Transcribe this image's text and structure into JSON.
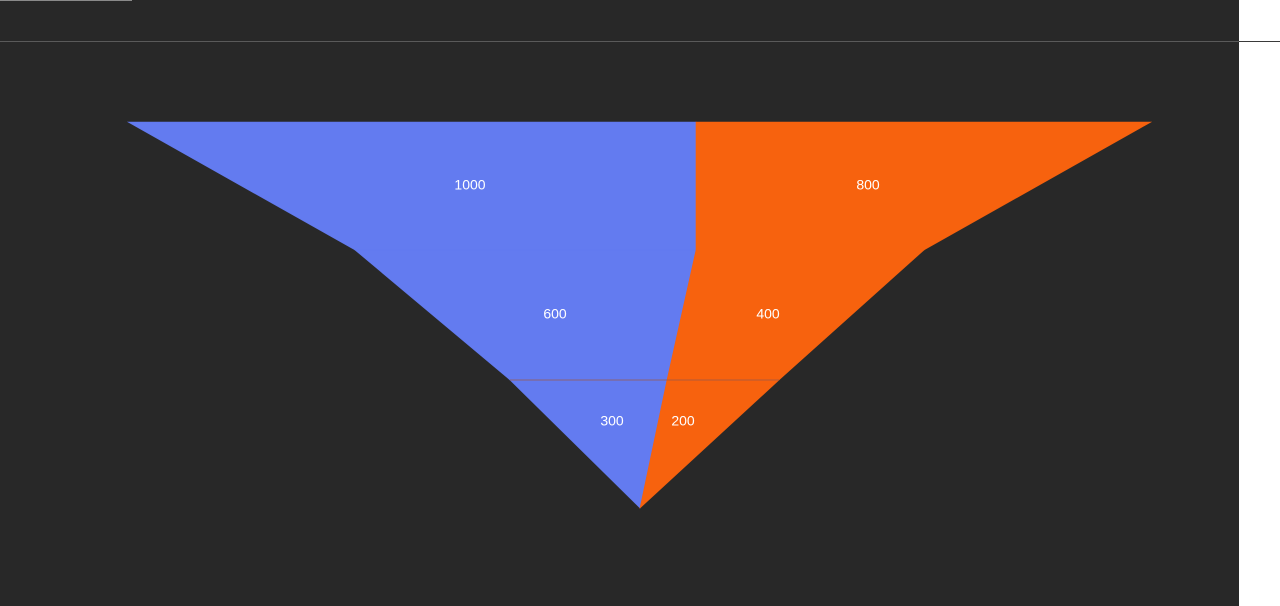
{
  "chart_data": {
    "type": "funnel",
    "stages": 3,
    "series": [
      {
        "side": "left",
        "color": "#637bf0",
        "values": [
          1000,
          600,
          300
        ]
      },
      {
        "side": "right",
        "color": "#f7620e",
        "values": [
          800,
          400,
          200
        ]
      }
    ],
    "labels": {
      "left": [
        "1000",
        "600",
        "300"
      ],
      "right": [
        "800",
        "400",
        "200"
      ]
    }
  },
  "colors": {
    "background": "#282828",
    "divider": "#5a5a5a",
    "label": "#ffffff"
  }
}
